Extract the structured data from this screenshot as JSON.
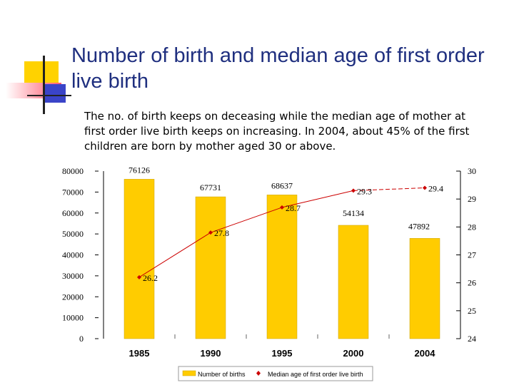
{
  "slide": {
    "title": "Number of birth and median age of first order live birth",
    "body": "The no. of birth keeps on deceasing while the median age of mother at first order live birth keeps on increasing.  In 2004, about 45% of the first children are born by mother aged 30 or above."
  },
  "colors": {
    "title": "#1f2f7f",
    "bar": "#ffcc00",
    "bar_edge": "#c8a000",
    "line": "#cc0000",
    "deco_yellow": "#ffd200",
    "deco_blue": "#3a44c8",
    "deco_red": "#ff5a6e"
  },
  "chart_data": {
    "type": "bar",
    "categories": [
      "1985",
      "1990",
      "1995",
      "2000",
      "2004"
    ],
    "series": [
      {
        "name": "Number of births",
        "type": "bar",
        "axis": "left",
        "values": [
          76126,
          67731,
          68637,
          54134,
          47892
        ],
        "labels": [
          "76126",
          "67731",
          "68637",
          "54134",
          "47892"
        ]
      },
      {
        "name": "Median age of first order live birth",
        "type": "line",
        "axis": "right",
        "values": [
          26.2,
          27.8,
          28.7,
          29.3,
          29.4
        ],
        "labels": [
          "26.2",
          "27.8",
          "28.7",
          "29.3",
          "29.4"
        ]
      }
    ],
    "left_axis": {
      "ylim": [
        0,
        80000
      ],
      "ticks": [
        "0",
        "10000",
        "20000",
        "30000",
        "40000",
        "50000",
        "60000",
        "70000",
        "80000"
      ]
    },
    "right_axis": {
      "ylim": [
        24,
        30
      ],
      "ticks": [
        "24",
        "25",
        "26",
        "27",
        "28",
        "29",
        "30"
      ]
    },
    "legend_position": "bottom",
    "grid": false
  }
}
